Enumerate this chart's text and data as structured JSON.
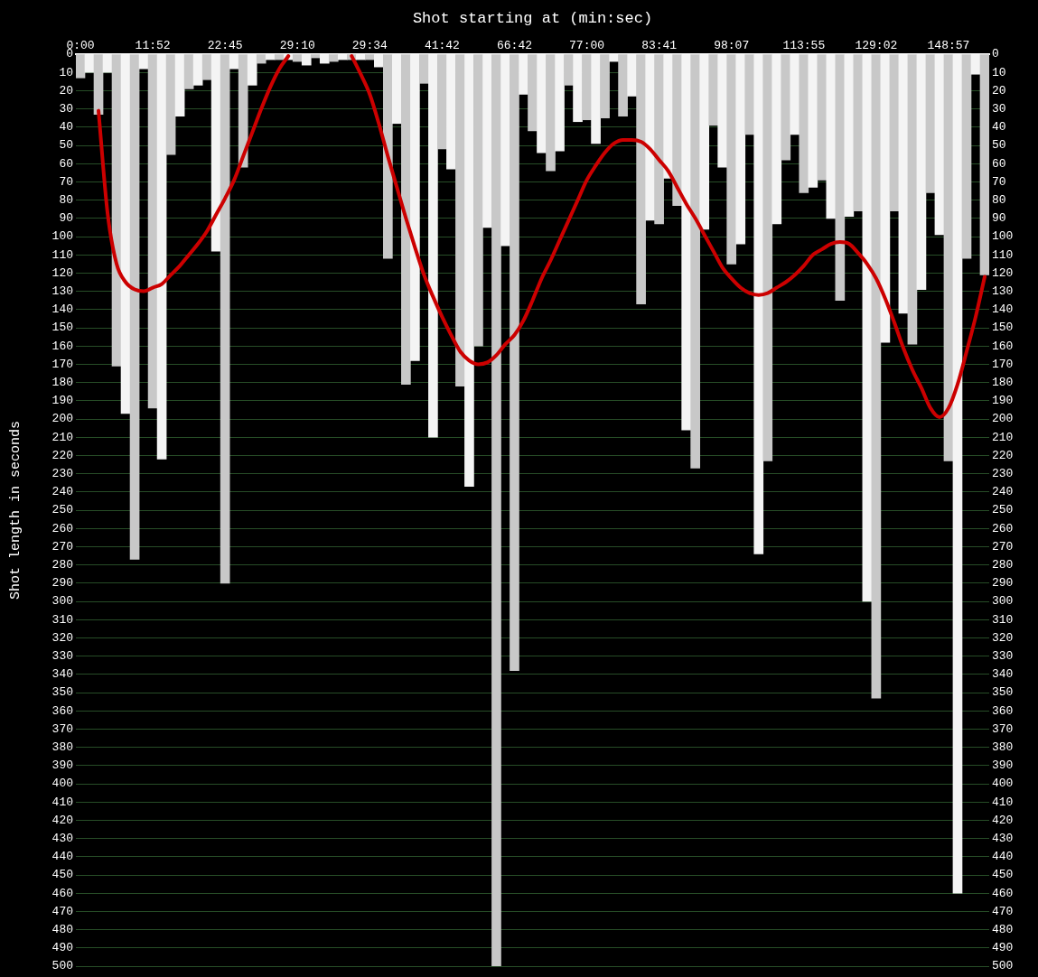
{
  "chart_data": {
    "type": "bar",
    "xlabel": "Shot starting at (min:sec)",
    "ylabel": "Shot length in seconds",
    "categories": [
      "0:00",
      null,
      null,
      null,
      null,
      null,
      null,
      null,
      "11:52",
      null,
      null,
      null,
      null,
      null,
      null,
      null,
      "22:45",
      null,
      null,
      null,
      null,
      null,
      null,
      null,
      "29:10",
      null,
      null,
      null,
      null,
      null,
      null,
      null,
      "29:34",
      null,
      null,
      null,
      null,
      null,
      null,
      null,
      "41:42",
      null,
      null,
      null,
      null,
      null,
      null,
      null,
      "66:42",
      null,
      null,
      null,
      null,
      null,
      null,
      null,
      "77:00",
      null,
      null,
      null,
      null,
      null,
      null,
      null,
      "83:41",
      null,
      null,
      null,
      null,
      null,
      null,
      null,
      "98:07",
      null,
      null,
      null,
      null,
      null,
      null,
      null,
      "113:55",
      null,
      null,
      null,
      null,
      null,
      null,
      null,
      "129:02",
      null,
      null,
      null,
      null,
      null,
      null,
      null,
      "148:57",
      null,
      null,
      null,
      null
    ],
    "series": [
      {
        "colors": [
          "#c8c8c8",
          "#f4f4f4",
          "#c8c8c8",
          "#f4f4f4",
          "#c8c8c8",
          "#f4f4f4",
          "#c8c8c8",
          "#f4f4f4",
          "#c8c8c8",
          "#f4f4f4",
          "#c8c8c8",
          "#f4f4f4",
          "#c8c8c8",
          "#f4f4f4",
          "#c8c8c8",
          "#f4f4f4",
          "#c8c8c8",
          "#f4f4f4",
          "#c8c8c8",
          "#f4f4f4",
          "#c8c8c8",
          "#f4f4f4",
          "#c8c8c8",
          "#f4f4f4",
          "#c8c8c8",
          "#f4f4f4",
          "#c8c8c8",
          "#f4f4f4",
          "#c8c8c8",
          "#f4f4f4",
          "#c8c8c8",
          "#f4f4f4",
          "#c8c8c8",
          "#f4f4f4",
          "#c8c8c8",
          "#f4f4f4",
          "#c8c8c8",
          "#f4f4f4",
          "#c8c8c8",
          "#f4f4f4",
          "#c8c8c8",
          "#f4f4f4",
          "#c8c8c8",
          "#f4f4f4",
          "#c8c8c8",
          "#f4f4f4",
          "#c8c8c8",
          "#f4f4f4",
          "#c8c8c8",
          "#f4f4f4",
          "#c8c8c8",
          "#f4f4f4",
          "#c8c8c8",
          "#f4f4f4",
          "#c8c8c8",
          "#f4f4f4",
          "#c8c8c8",
          "#f4f4f4",
          "#c8c8c8",
          "#f4f4f4",
          "#c8c8c8",
          "#f4f4f4",
          "#c8c8c8",
          "#f4f4f4",
          "#c8c8c8",
          "#f4f4f4",
          "#c8c8c8",
          "#f4f4f4",
          "#c8c8c8",
          "#f4f4f4",
          "#c8c8c8",
          "#f4f4f4",
          "#c8c8c8",
          "#f4f4f4",
          "#c8c8c8",
          "#f4f4f4",
          "#c8c8c8",
          "#f4f4f4",
          "#c8c8c8",
          "#f4f4f4",
          "#c8c8c8",
          "#f4f4f4",
          "#c8c8c8",
          "#f4f4f4",
          "#c8c8c8",
          "#f4f4f4",
          "#c8c8c8",
          "#f4f4f4",
          "#c8c8c8",
          "#f4f4f4",
          "#c8c8c8",
          "#f4f4f4",
          "#c8c8c8",
          "#f4f4f4",
          "#c8c8c8",
          "#f4f4f4",
          "#c8c8c8",
          "#f4f4f4",
          "#c8c8c8",
          "#f4f4f4",
          "#c8c8c8"
        ],
        "values": [
          13,
          10,
          33,
          10,
          171,
          197,
          277,
          8,
          194,
          222,
          55,
          34,
          19,
          17,
          14,
          108,
          290,
          8,
          62,
          17,
          5,
          3,
          3,
          3,
          4,
          6,
          2,
          5,
          4,
          3,
          3,
          3,
          3,
          7,
          112,
          38,
          181,
          168,
          16,
          210,
          52,
          63,
          182,
          237,
          160,
          95,
          500,
          105,
          338,
          22,
          42,
          54,
          64,
          53,
          17,
          37,
          36,
          49,
          35,
          4,
          34,
          23,
          137,
          91,
          93,
          68,
          83,
          206,
          227,
          96,
          39,
          62,
          115,
          104,
          44,
          274,
          223,
          93,
          58,
          44,
          76,
          73,
          69,
          90,
          135,
          89,
          86,
          300,
          353,
          158,
          86,
          142,
          159,
          129,
          76,
          99,
          223,
          460,
          112,
          11,
          121
        ]
      },
      {
        "type": "line",
        "color": "#cc0000",
        "marker": "none",
        "line_style": "solid",
        "values": [
          null,
          null,
          31,
          87,
          115,
          125,
          129,
          130,
          128,
          126,
          121,
          116,
          110,
          104,
          97,
          88,
          79,
          69,
          56,
          43,
          30,
          18,
          8,
          1,
          null,
          null,
          null,
          null,
          null,
          null,
          1,
          11,
          22,
          38,
          56,
          73,
          90,
          106,
          121,
          133,
          144,
          154,
          163,
          168,
          170,
          169,
          165,
          159,
          154,
          146,
          135,
          123,
          113,
          102,
          91,
          80,
          69,
          61,
          54,
          49,
          47,
          47,
          48,
          52,
          58,
          64,
          73,
          82,
          90,
          99,
          108,
          117,
          123,
          128,
          131,
          132,
          131,
          128,
          125,
          121,
          116,
          110,
          107,
          104,
          103,
          104,
          109,
          115,
          123,
          134,
          147,
          161,
          173,
          183,
          194,
          199,
          194,
          181,
          163,
          144,
          122
        ]
      }
    ],
    "ylim": [
      500,
      0
    ],
    "yticks": [
      0,
      10,
      20,
      30,
      40,
      50,
      60,
      70,
      80,
      90,
      100,
      110,
      120,
      130,
      140,
      150,
      160,
      170,
      180,
      190,
      200,
      210,
      220,
      230,
      240,
      250,
      260,
      270,
      280,
      290,
      300,
      310,
      320,
      330,
      340,
      350,
      360,
      370,
      380,
      390,
      400,
      410,
      420,
      430,
      440,
      450,
      460,
      470,
      480,
      490,
      500
    ],
    "y2lim": [
      500,
      0
    ],
    "y2ticks": [
      0,
      10,
      20,
      30,
      40,
      50,
      60,
      70,
      80,
      90,
      100,
      110,
      120,
      130,
      140,
      150,
      160,
      170,
      180,
      190,
      200,
      210,
      220,
      230,
      240,
      250,
      260,
      270,
      280,
      290,
      300,
      310,
      320,
      330,
      340,
      350,
      360,
      370,
      380,
      390,
      400,
      410,
      420,
      430,
      440,
      450,
      460,
      470,
      480,
      490,
      500
    ],
    "grid": "y",
    "legend": false
  }
}
